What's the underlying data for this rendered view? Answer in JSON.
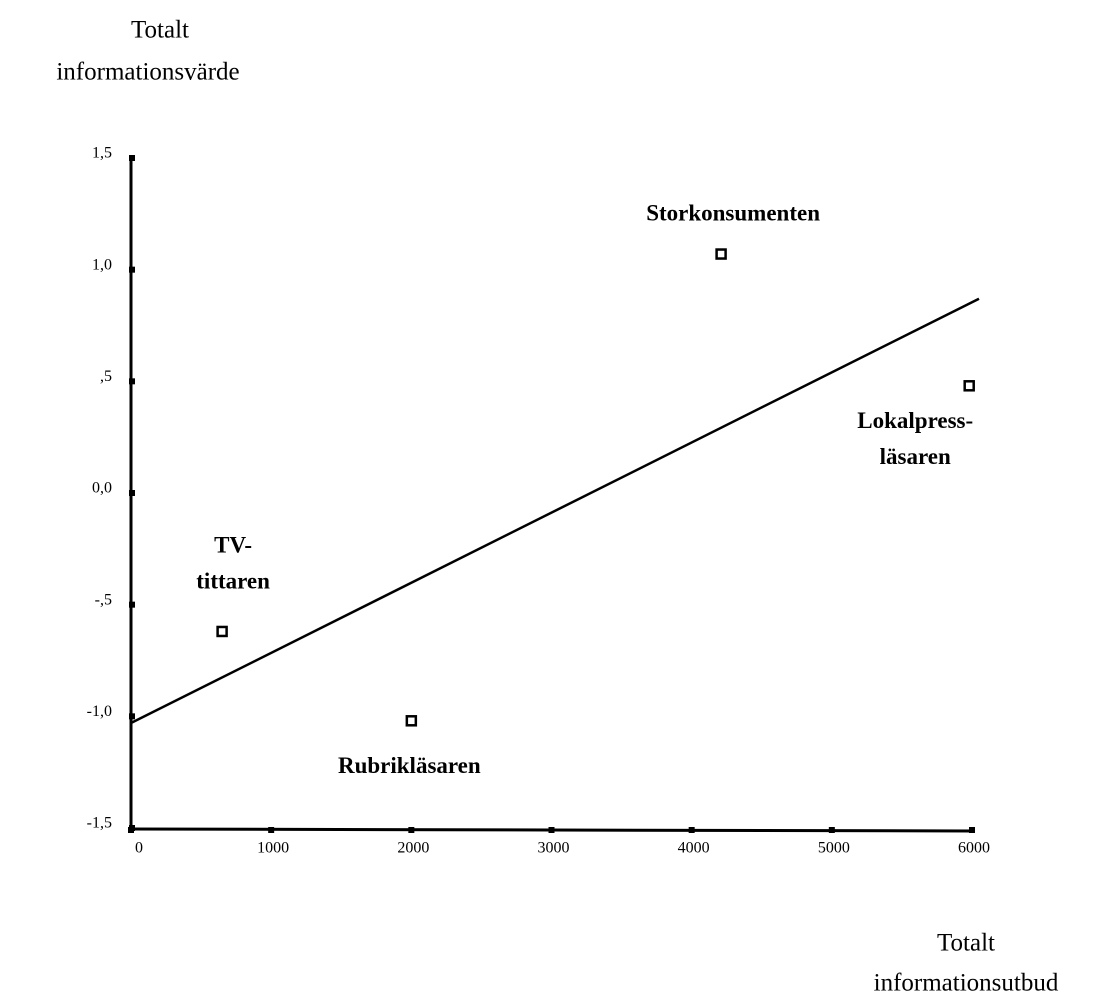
{
  "chart_data": {
    "type": "scatter",
    "ylabel": [
      "Totalt",
      "informationsvärde"
    ],
    "xlabel": [
      "Totalt",
      "informationsutbud"
    ],
    "x": [
      650,
      2000,
      4210,
      5980
    ],
    "values": [
      -0.62,
      -1.02,
      1.07,
      0.48
    ],
    "labels": [
      [
        "TV-",
        "tittaren"
      ],
      [
        "Rubrikläsaren"
      ],
      [
        "Storkonsumenten"
      ],
      [
        "Lokalpress-",
        "läsaren"
      ]
    ],
    "color": "#000000",
    "trend_line": {
      "x": [
        0,
        6050
      ],
      "y": [
        -1.03,
        0.87
      ]
    },
    "xlim": [
      0,
      6000
    ],
    "ylim": [
      -1.5,
      1.5
    ],
    "xticks": [
      0,
      1000,
      2000,
      3000,
      4000,
      5000,
      6000
    ],
    "yticks": [
      {
        "value": 1.5,
        "label": "1,5"
      },
      {
        "value": 1.0,
        "label": "1,0"
      },
      {
        "value": 0.5,
        "label": ",5"
      },
      {
        "value": 0.0,
        "label": "0,0"
      },
      {
        "value": -0.5,
        "label": "-,5"
      },
      {
        "value": -1.0,
        "label": "-1,0"
      },
      {
        "value": -1.5,
        "label": "-1,5"
      }
    ],
    "grid": false
  }
}
